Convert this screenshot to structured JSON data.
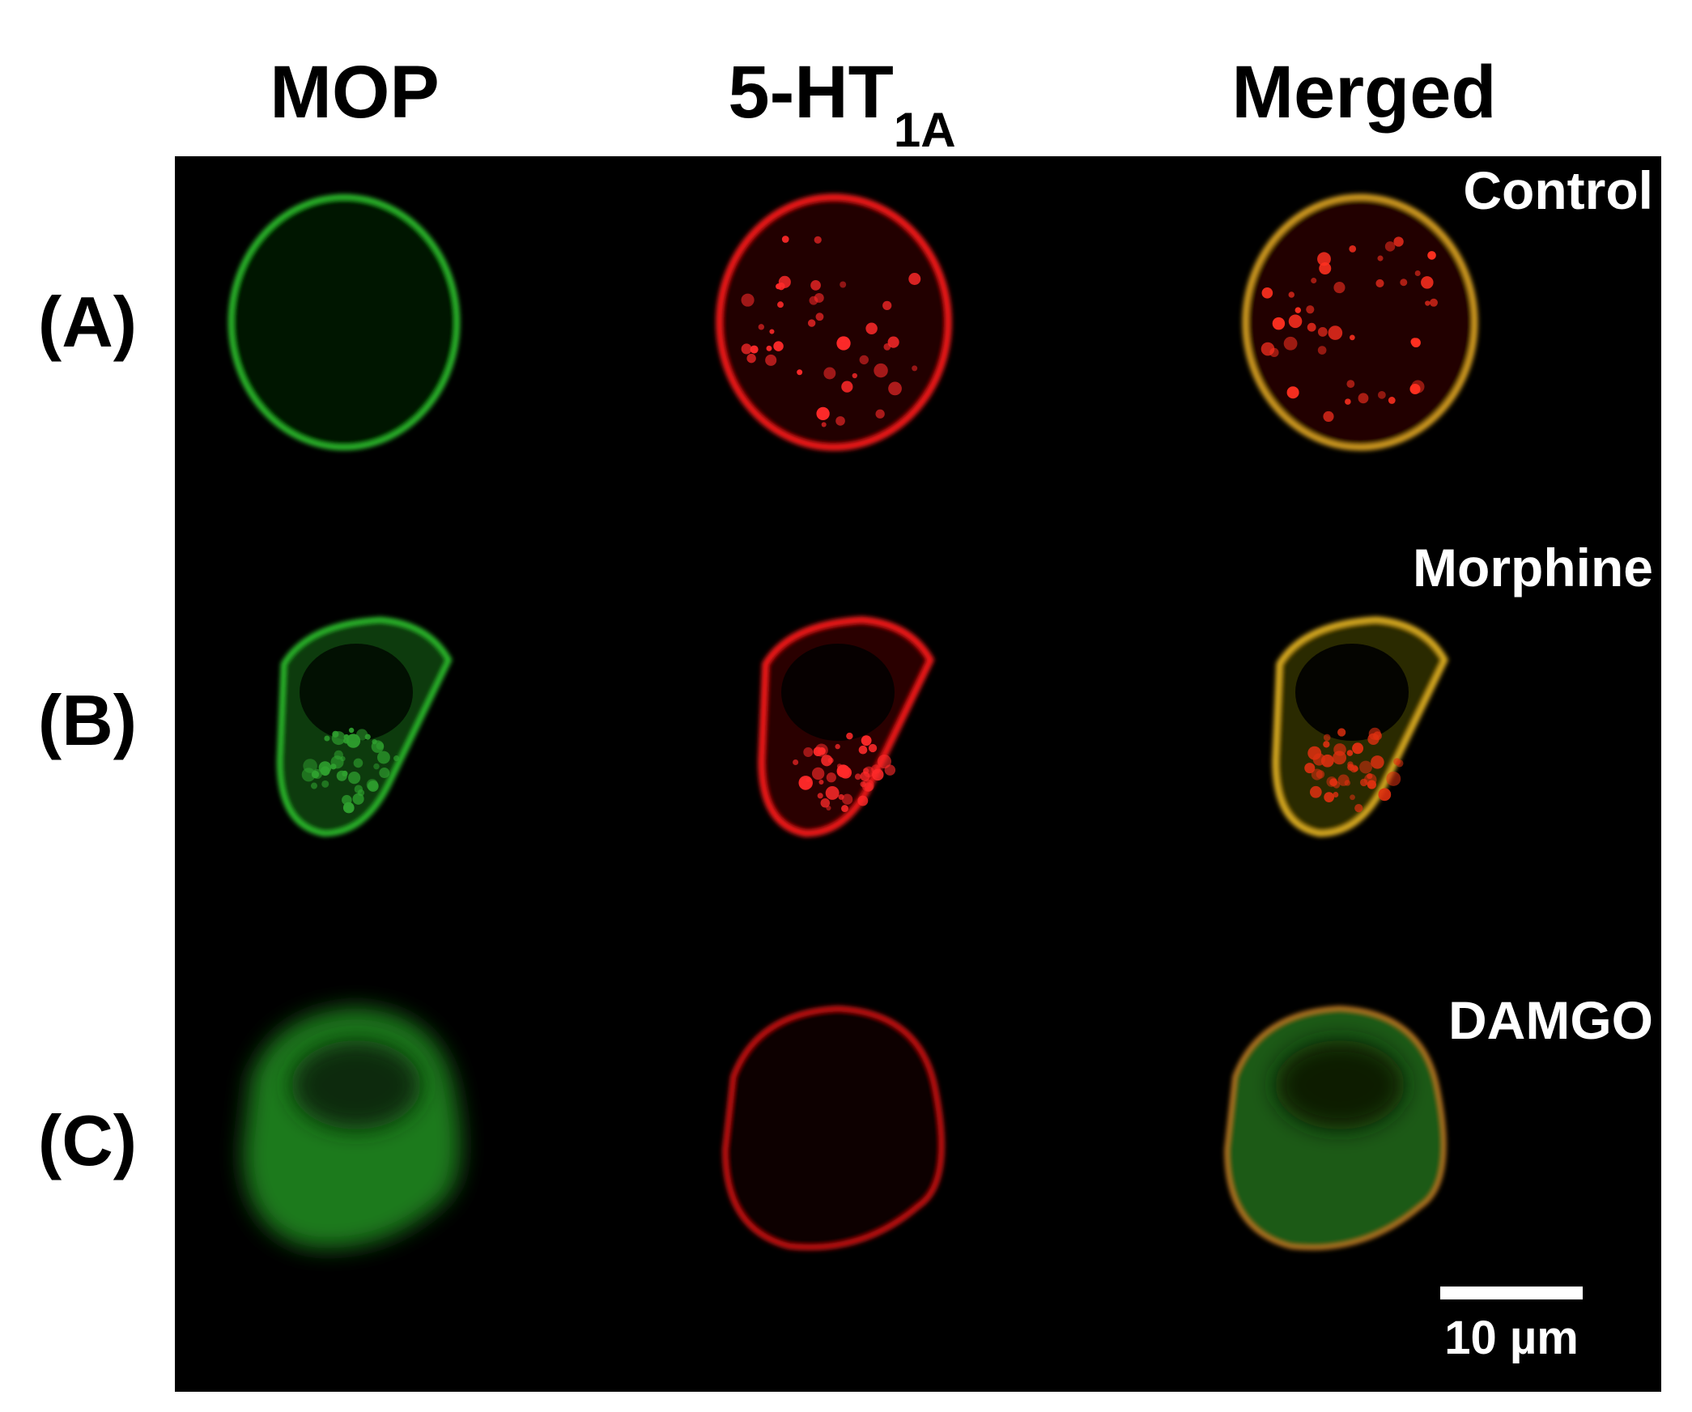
{
  "columns": {
    "mop": "MOP",
    "ht": {
      "base": "5-HT",
      "sub": "1A"
    },
    "merged": "Merged"
  },
  "rows": [
    {
      "label": "(A)",
      "condition": "Control"
    },
    {
      "label": "(B)",
      "condition": "Morphine"
    },
    {
      "label": "(C)",
      "condition": "DAMGO"
    }
  ],
  "scale_bar": "10 µm"
}
